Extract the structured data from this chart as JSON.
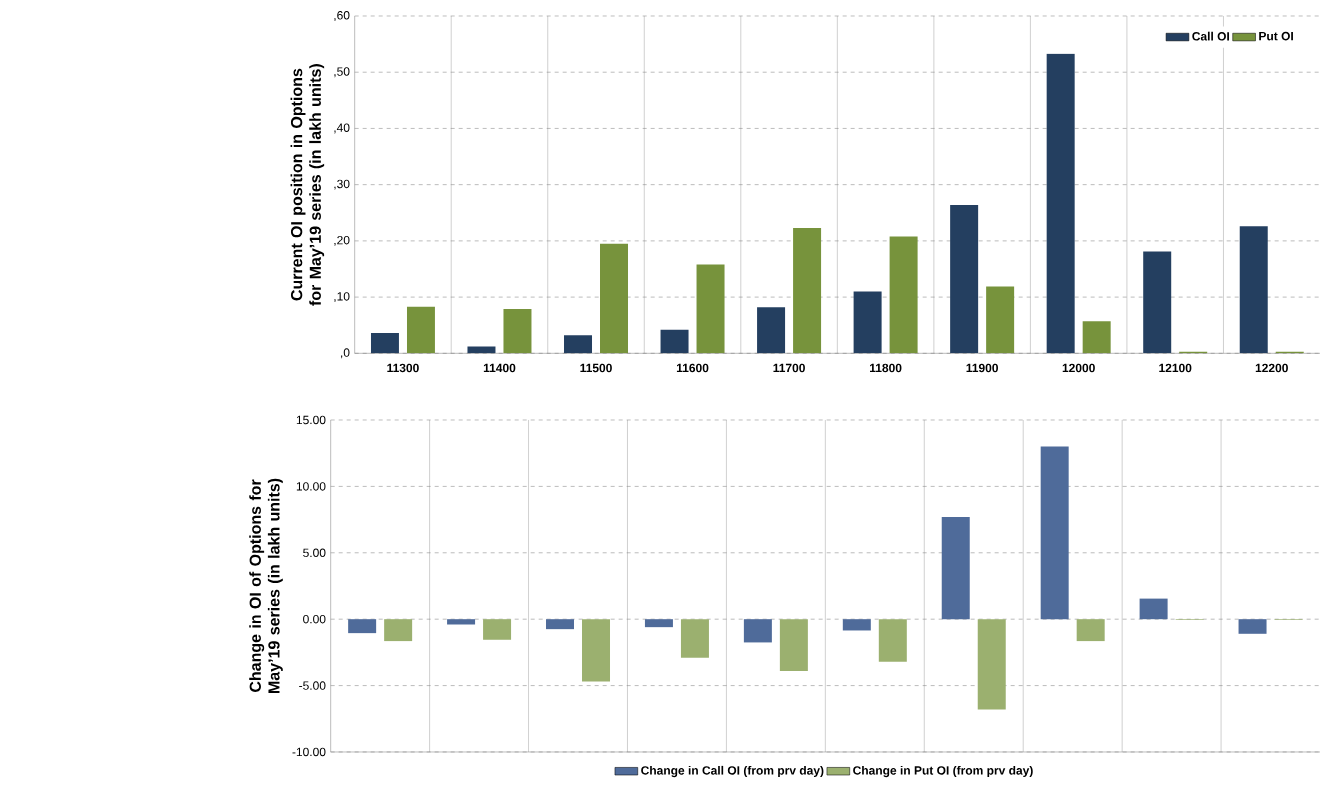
{
  "chart_data": [
    {
      "type": "bar",
      "ylabel": "Current OI position in Options for May’19 series (in lakh units)",
      "categories": [
        "11300",
        "11400",
        "11500",
        "11600",
        "11700",
        "11800",
        "11900",
        "12000",
        "12100",
        "12200"
      ],
      "series": [
        {
          "name": "Call OI",
          "color": "#243f60",
          "values": [
            3.6,
            1.2,
            3.2,
            4.2,
            8.2,
            11.0,
            26.4,
            53.3,
            18.1,
            22.6
          ]
        },
        {
          "name": "Put OI",
          "color": "#77933c",
          "values": [
            8.3,
            7.9,
            19.5,
            15.8,
            22.3,
            20.8,
            11.9,
            5.7,
            0.3,
            0.3
          ]
        }
      ],
      "ylim": [
        0,
        60
      ],
      "yticks": [
        {
          "value": 0,
          "label": ",0"
        },
        {
          "value": 10,
          "label": ",10"
        },
        {
          "value": 20,
          "label": ",20"
        },
        {
          "value": 30,
          "label": ",30"
        },
        {
          "value": 40,
          "label": ",40"
        },
        {
          "value": 50,
          "label": ",50"
        },
        {
          "value": 60,
          "label": ",60"
        }
      ],
      "grid": true,
      "legend": "top right"
    },
    {
      "type": "bar",
      "ylabel": "Change in OI of Options for May’19 series (in lakh units)",
      "categories": [
        "11300",
        "11400",
        "11500",
        "11600",
        "11700",
        "11800",
        "11900",
        "12000",
        "12100",
        "12200"
      ],
      "series": [
        {
          "name": "Change in Call OI (from prv day)",
          "color": "#4f6b9a",
          "values": [
            -1.05,
            -0.4,
            -0.75,
            -0.6,
            -1.75,
            -0.85,
            7.7,
            13.0,
            1.55,
            -1.1
          ]
        },
        {
          "name": "Change in Put OI (from prv day)",
          "color": "#9bb06f",
          "values": [
            -1.65,
            -1.55,
            -4.7,
            -2.9,
            -3.9,
            -3.2,
            -6.8,
            -1.65,
            -0.05,
            -0.05
          ]
        }
      ],
      "ylim": [
        -10,
        15
      ],
      "yticks": [
        {
          "value": -10,
          "label": "-10.00"
        },
        {
          "value": -5,
          "label": "-5.00"
        },
        {
          "value": 0,
          "label": "0.00"
        },
        {
          "value": 5,
          "label": "5.00"
        },
        {
          "value": 10,
          "label": "10.00"
        },
        {
          "value": 15,
          "label": "15.00"
        }
      ],
      "grid": true,
      "legend": "bottom",
      "tick_labels": "y"
    }
  ]
}
